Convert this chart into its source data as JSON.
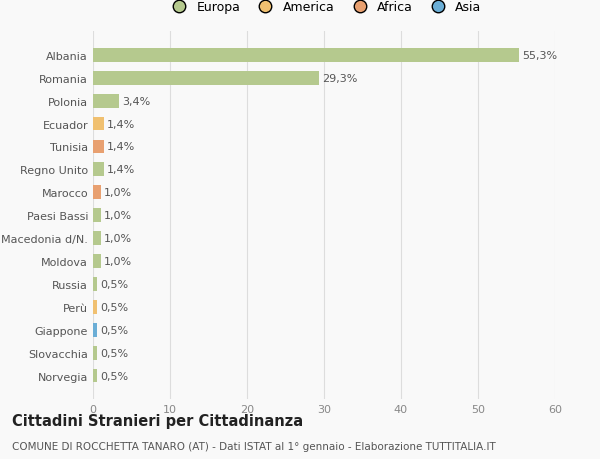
{
  "categories": [
    "Norvegia",
    "Slovacchia",
    "Giappone",
    "Perù",
    "Russia",
    "Moldova",
    "Macedonia d/N.",
    "Paesi Bassi",
    "Marocco",
    "Regno Unito",
    "Tunisia",
    "Ecuador",
    "Polonia",
    "Romania",
    "Albania"
  ],
  "values": [
    0.5,
    0.5,
    0.5,
    0.5,
    0.5,
    1.0,
    1.0,
    1.0,
    1.0,
    1.4,
    1.4,
    1.4,
    3.4,
    29.3,
    55.3
  ],
  "colors": [
    "#b5c98e",
    "#b5c98e",
    "#6baed6",
    "#f0c070",
    "#b5c98e",
    "#b5c98e",
    "#b5c98e",
    "#b5c98e",
    "#e8a070",
    "#b5c98e",
    "#e8a070",
    "#f0c070",
    "#b5c98e",
    "#b5c98e",
    "#b5c98e"
  ],
  "labels": [
    "0,5%",
    "0,5%",
    "0,5%",
    "0,5%",
    "0,5%",
    "1,0%",
    "1,0%",
    "1,0%",
    "1,0%",
    "1,4%",
    "1,4%",
    "1,4%",
    "3,4%",
    "29,3%",
    "55,3%"
  ],
  "legend": {
    "Europa": "#b5c98e",
    "America": "#f0c070",
    "Africa": "#e8a070",
    "Asia": "#6baed6"
  },
  "title": "Cittadini Stranieri per Cittadinanza",
  "subtitle": "COMUNE DI ROCCHETTA TANARO (AT) - Dati ISTAT al 1° gennaio - Elaborazione TUTTITALIA.IT",
  "xlim": [
    0,
    60
  ],
  "xticks": [
    0,
    10,
    20,
    30,
    40,
    50,
    60
  ],
  "background_color": "#f9f9f9",
  "bar_height": 0.6,
  "grid_color": "#dddddd",
  "label_fontsize": 8,
  "title_fontsize": 10.5,
  "subtitle_fontsize": 7.5,
  "tick_fontsize": 8
}
